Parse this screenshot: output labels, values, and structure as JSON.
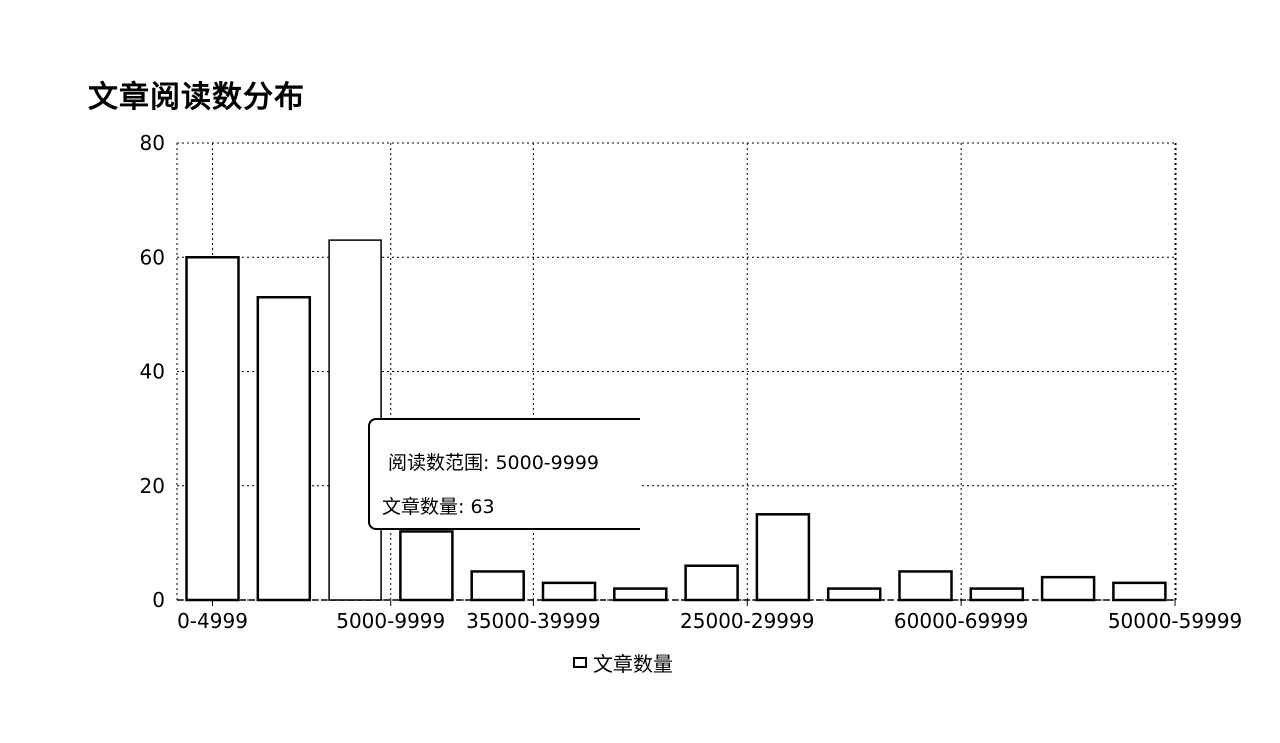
{
  "title": "文章阅读数分布",
  "chart_data": {
    "type": "bar",
    "title": "文章阅读数分布",
    "xlabel": "",
    "ylabel": "",
    "ylim": [
      0,
      80
    ],
    "yticks": [
      0,
      20,
      40,
      60,
      80
    ],
    "categories": [
      "0-4999",
      "",
      "5000-9999",
      "35000-39999",
      "",
      "",
      "25000-29999",
      "",
      "",
      "60000-69999",
      "",
      "",
      "50000-59999",
      ""
    ],
    "values": [
      60,
      53,
      63,
      12,
      5,
      3,
      2,
      6,
      15,
      2,
      5,
      2,
      4,
      3
    ],
    "grid": true,
    "legend_position": "bottom-center",
    "series": [
      {
        "name": "文章数量",
        "values": [
          60,
          53,
          63,
          12,
          5,
          3,
          2,
          6,
          15,
          2,
          5,
          2,
          4,
          3
        ]
      }
    ],
    "tick_labels_shown": [
      {
        "index": 0,
        "label": "0-4999"
      },
      {
        "index": 2.5,
        "label": "5000-9999"
      },
      {
        "index": 4.5,
        "label": "35000-39999"
      },
      {
        "index": 7.5,
        "label": "25000-29999"
      },
      {
        "index": 10.5,
        "label": "60000-69999"
      },
      {
        "index": 13.5,
        "label": "50000-59999"
      }
    ],
    "colors": {
      "bar_fill": "#ffffff",
      "bar_stroke": "#000000",
      "grid": "#000000"
    }
  },
  "tooltip": {
    "range_label": "阅读数范围: 5000-9999",
    "count_label": "文章数量: 63"
  },
  "legend": {
    "label": "文章数量"
  }
}
